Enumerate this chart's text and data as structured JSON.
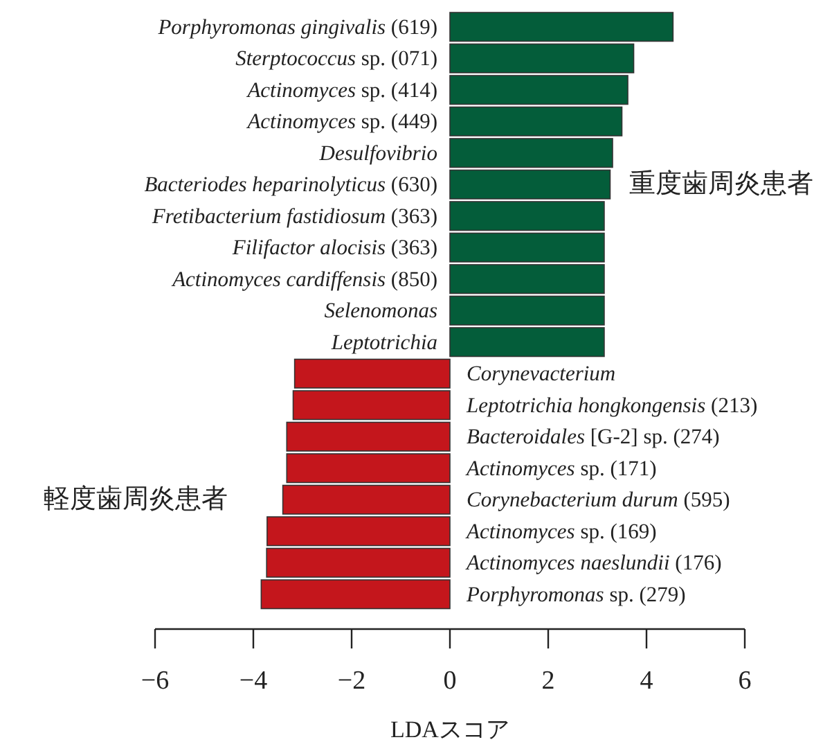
{
  "chart_data": {
    "type": "bar",
    "orientation": "horizontal",
    "xlabel": "LDAスコア",
    "categories": [
      "Porphyromonas gingivalis (619)",
      "Sterptococcus sp. (071)",
      "Actinomyces sp. (414)",
      "Actinomyces sp. (449)",
      "Desulfovibrio",
      "Bacteriodes heparinolyticus (630)",
      "Fretibacterium fastidiosum (363)",
      "Filifactor alocisis (363)",
      "Actinomyces cardiffensis (850)",
      "Selenomonas",
      "Leptotrichia",
      "Corynevacterium",
      "Leptotrichia hongkongensis (213)",
      "Bacteroidales [G-2] sp. (274)",
      "Actinomyces sp. (171)",
      "Corynebacterium durum  (595)",
      "Actinomyces sp. (169)",
      "Actinomyces naeslundii  (176)",
      "Porphyromonas sp. (279)"
    ],
    "series": [
      {
        "name": "重度歯周炎患者",
        "color": "#045d3a",
        "values": [
          4.54,
          3.74,
          3.62,
          3.5,
          3.31,
          3.26,
          3.14,
          3.14,
          3.14,
          3.14,
          3.14,
          null,
          null,
          null,
          null,
          null,
          null,
          null,
          null
        ]
      },
      {
        "name": "軽度歯周炎患者",
        "color": "#c4161c",
        "values": [
          null,
          null,
          null,
          null,
          null,
          null,
          null,
          null,
          null,
          null,
          null,
          -3.16,
          -3.19,
          -3.32,
          -3.32,
          -3.4,
          -3.72,
          -3.73,
          -3.84
        ]
      }
    ],
    "xlim": [
      -6,
      6
    ],
    "xticks": [
      -6,
      -4,
      -2,
      0,
      2,
      4,
      6
    ]
  }
}
